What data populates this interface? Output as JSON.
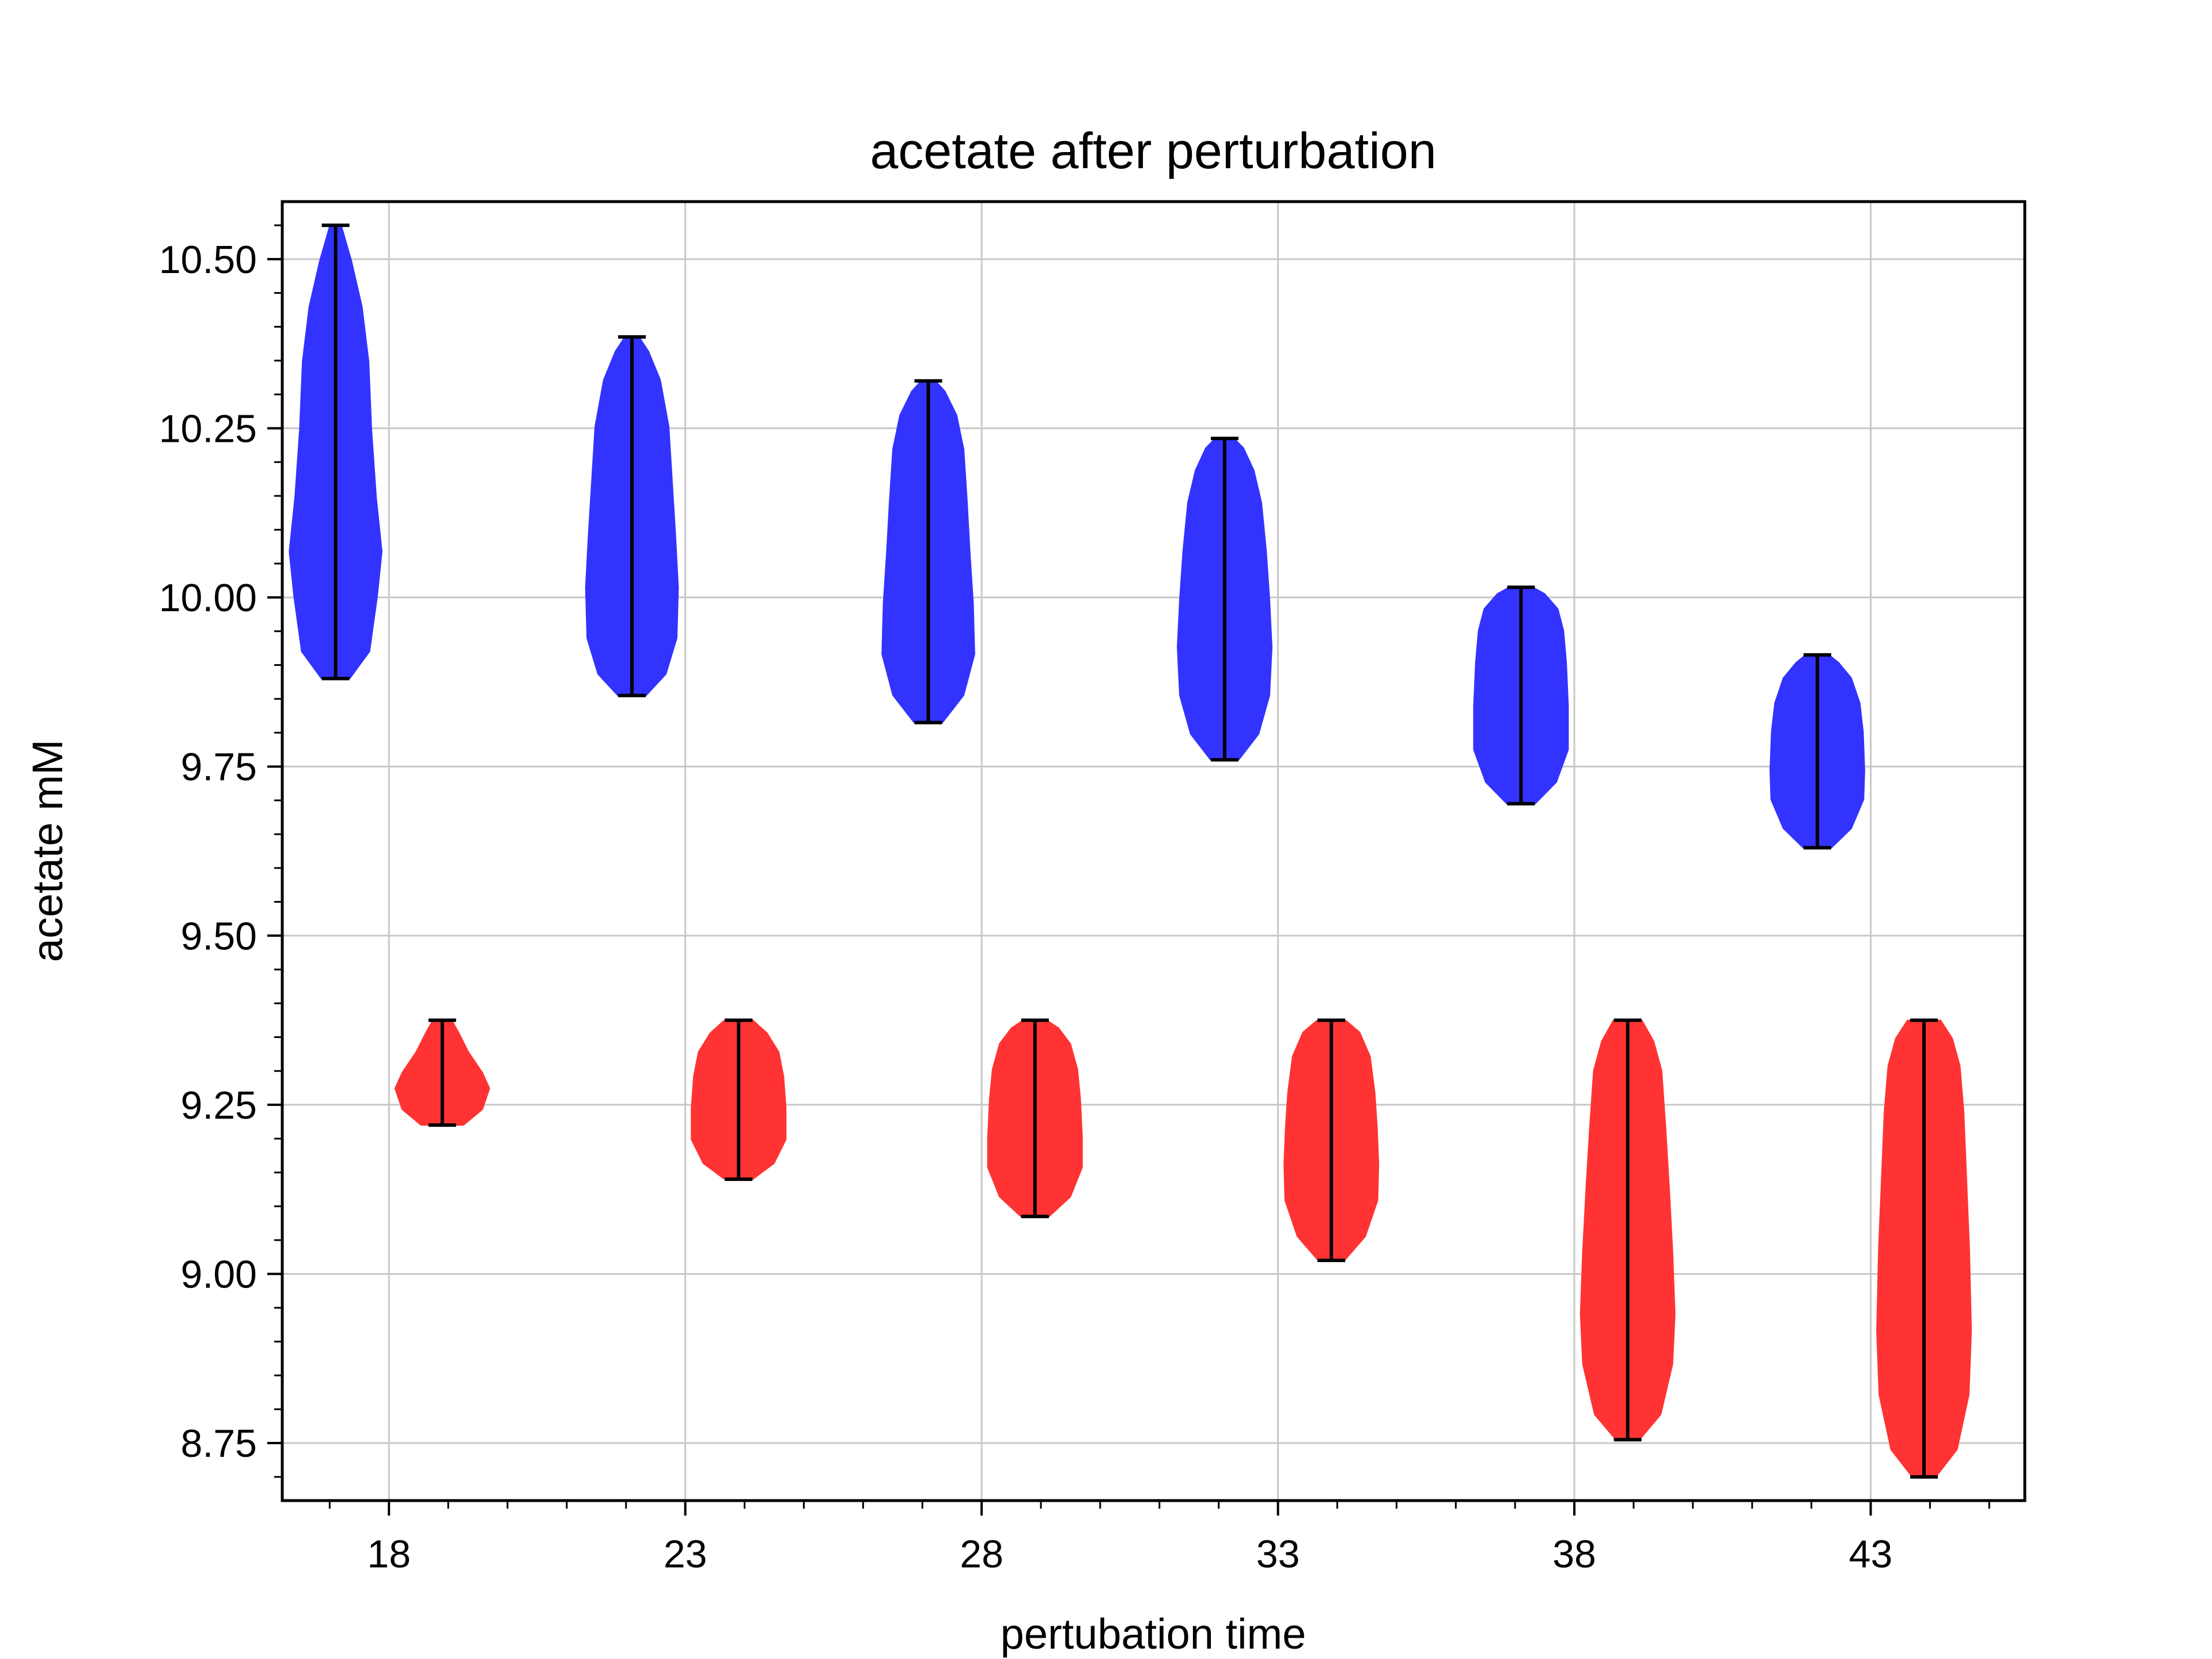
{
  "chart_data": {
    "type": "violin",
    "title": "acetate after perturbation",
    "xlabel": "pertubation time",
    "ylabel": "acetate mM",
    "xlim": [
      16.2,
      45.6
    ],
    "ylim": [
      8.665,
      10.585
    ],
    "xticks": [
      18,
      23,
      28,
      33,
      38,
      43
    ],
    "xtick_labels": [
      "18",
      "23",
      "28",
      "33",
      "38",
      "43"
    ],
    "yticks": [
      8.75,
      9.0,
      9.25,
      9.5,
      9.75,
      10.0,
      10.25,
      10.5
    ],
    "ytick_labels": [
      "8.75",
      "9.00",
      "9.25",
      "9.50",
      "9.75",
      "10.00",
      "10.25",
      "10.50"
    ],
    "grid": true,
    "series": [
      {
        "color": "#3333ff",
        "violins": [
          {
            "x": 17.1,
            "min": 9.88,
            "max": 10.55,
            "profile": [
              [
                0.0,
                0.3
              ],
              [
                0.06,
                0.72
              ],
              [
                0.18,
                0.88
              ],
              [
                0.28,
                0.98
              ],
              [
                0.4,
                0.86
              ],
              [
                0.55,
                0.76
              ],
              [
                0.7,
                0.7
              ],
              [
                0.82,
                0.56
              ],
              [
                0.92,
                0.34
              ],
              [
                1.0,
                0.12
              ]
            ]
          },
          {
            "x": 22.1,
            "min": 9.855,
            "max": 10.385,
            "profile": [
              [
                0.0,
                0.3
              ],
              [
                0.06,
                0.72
              ],
              [
                0.16,
                0.95
              ],
              [
                0.3,
                0.98
              ],
              [
                0.45,
                0.92
              ],
              [
                0.6,
                0.85
              ],
              [
                0.75,
                0.78
              ],
              [
                0.88,
                0.6
              ],
              [
                0.96,
                0.35
              ],
              [
                1.0,
                0.15
              ]
            ]
          },
          {
            "x": 27.1,
            "min": 9.815,
            "max": 10.32,
            "profile": [
              [
                0.0,
                0.3
              ],
              [
                0.08,
                0.75
              ],
              [
                0.2,
                0.98
              ],
              [
                0.35,
                0.95
              ],
              [
                0.5,
                0.88
              ],
              [
                0.65,
                0.82
              ],
              [
                0.8,
                0.75
              ],
              [
                0.9,
                0.6
              ],
              [
                0.97,
                0.35
              ],
              [
                1.0,
                0.15
              ]
            ]
          },
          {
            "x": 32.1,
            "min": 9.76,
            "max": 10.235,
            "profile": [
              [
                0.0,
                0.3
              ],
              [
                0.08,
                0.72
              ],
              [
                0.2,
                0.95
              ],
              [
                0.35,
                1.0
              ],
              [
                0.5,
                0.95
              ],
              [
                0.65,
                0.88
              ],
              [
                0.8,
                0.78
              ],
              [
                0.9,
                0.62
              ],
              [
                0.97,
                0.4
              ],
              [
                1.0,
                0.2
              ]
            ]
          },
          {
            "x": 37.1,
            "min": 9.695,
            "max": 10.015,
            "profile": [
              [
                0.0,
                0.3
              ],
              [
                0.1,
                0.75
              ],
              [
                0.25,
                1.0
              ],
              [
                0.45,
                1.0
              ],
              [
                0.65,
                0.96
              ],
              [
                0.8,
                0.9
              ],
              [
                0.9,
                0.78
              ],
              [
                0.97,
                0.5
              ],
              [
                1.0,
                0.25
              ]
            ]
          },
          {
            "x": 42.1,
            "min": 9.63,
            "max": 9.915,
            "profile": [
              [
                0.0,
                0.3
              ],
              [
                0.1,
                0.72
              ],
              [
                0.25,
                0.98
              ],
              [
                0.4,
                1.0
              ],
              [
                0.6,
                0.97
              ],
              [
                0.75,
                0.9
              ],
              [
                0.88,
                0.72
              ],
              [
                0.96,
                0.45
              ],
              [
                1.0,
                0.25
              ]
            ]
          }
        ]
      },
      {
        "color": "#ff3333",
        "violins": [
          {
            "x": 18.9,
            "min": 9.22,
            "max": 9.375,
            "profile": [
              [
                0.0,
                0.45
              ],
              [
                0.15,
                0.85
              ],
              [
                0.35,
                1.0
              ],
              [
                0.5,
                0.85
              ],
              [
                0.7,
                0.55
              ],
              [
                0.88,
                0.35
              ],
              [
                1.0,
                0.2
              ]
            ]
          },
          {
            "x": 23.9,
            "min": 9.14,
            "max": 9.375,
            "profile": [
              [
                0.0,
                0.3
              ],
              [
                0.1,
                0.75
              ],
              [
                0.25,
                1.0
              ],
              [
                0.45,
                1.0
              ],
              [
                0.65,
                0.95
              ],
              [
                0.8,
                0.85
              ],
              [
                0.92,
                0.6
              ],
              [
                1.0,
                0.3
              ]
            ]
          },
          {
            "x": 28.9,
            "min": 9.085,
            "max": 9.375,
            "profile": [
              [
                0.0,
                0.3
              ],
              [
                0.1,
                0.75
              ],
              [
                0.25,
                1.0
              ],
              [
                0.4,
                1.0
              ],
              [
                0.6,
                0.96
              ],
              [
                0.75,
                0.9
              ],
              [
                0.88,
                0.75
              ],
              [
                0.96,
                0.5
              ],
              [
                1.0,
                0.25
              ]
            ]
          },
          {
            "x": 33.9,
            "min": 9.02,
            "max": 9.375,
            "profile": [
              [
                0.0,
                0.28
              ],
              [
                0.1,
                0.72
              ],
              [
                0.25,
                0.98
              ],
              [
                0.4,
                1.0
              ],
              [
                0.55,
                0.97
              ],
              [
                0.7,
                0.92
              ],
              [
                0.85,
                0.82
              ],
              [
                0.95,
                0.6
              ],
              [
                1.0,
                0.3
              ]
            ]
          },
          {
            "x": 38.9,
            "min": 8.755,
            "max": 9.375,
            "profile": [
              [
                0.0,
                0.25
              ],
              [
                0.06,
                0.7
              ],
              [
                0.18,
                0.95
              ],
              [
                0.3,
                1.0
              ],
              [
                0.45,
                0.95
              ],
              [
                0.6,
                0.88
              ],
              [
                0.75,
                0.8
              ],
              [
                0.88,
                0.72
              ],
              [
                0.95,
                0.55
              ],
              [
                1.0,
                0.3
              ]
            ]
          },
          {
            "x": 43.9,
            "min": 8.7,
            "max": 9.375,
            "profile": [
              [
                0.0,
                0.25
              ],
              [
                0.06,
                0.7
              ],
              [
                0.18,
                0.95
              ],
              [
                0.32,
                1.0
              ],
              [
                0.5,
                0.96
              ],
              [
                0.65,
                0.9
              ],
              [
                0.8,
                0.84
              ],
              [
                0.9,
                0.76
              ],
              [
                0.96,
                0.6
              ],
              [
                1.0,
                0.35
              ]
            ]
          }
        ]
      }
    ]
  }
}
